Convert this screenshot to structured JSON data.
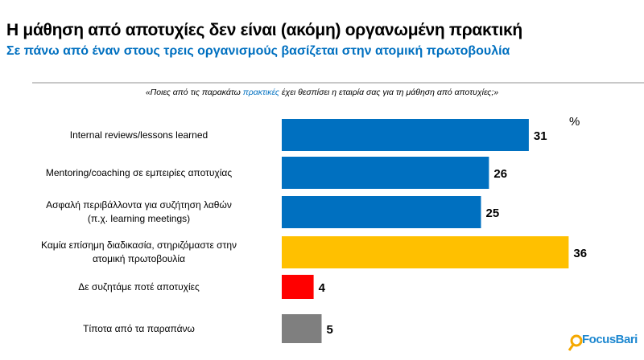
{
  "title": "Η μάθηση από αποτυχίες δεν είναι (ακόμη) οργανωμένη πρακτική",
  "subtitle": "Σε πάνω από έναν στους τρεις οργανισμούς βασίζεται στην ατομική πρωτοβουλία",
  "question": {
    "before": "«Ποιες από τις παρακάτω ",
    "highlight": "πρακτικές",
    "after": " έχει θεσπίσει η εταιρία σας για τη μάθηση από αποτυχίες;»"
  },
  "logo": {
    "text": "FocusBari",
    "color": "#1e88d0",
    "icon": "magnifier-icon"
  },
  "chart_data": {
    "type": "bar",
    "orientation": "horizontal",
    "unit_label": "%",
    "categories": [
      "Internal reviews/lessons learned",
      "Mentoring/coaching σε εμπειρίες αποτυχίας",
      "Ασφαλή περιβάλλοντα για συζήτηση λαθών\n(π.χ. learning meetings)",
      "Καμία επίσημη διαδικασία, στηριζόμαστε στην\nατομική πρωτοβουλία",
      "Δε συζητάμε ποτέ αποτυχίες",
      "Τίποτα από τα παραπάνω"
    ],
    "values": [
      31,
      26,
      25,
      36,
      4,
      5
    ],
    "colors": [
      "#0070c0",
      "#0070c0",
      "#0070c0",
      "#ffc000",
      "#ff0000",
      "#7f7f7f"
    ],
    "grid": false
  }
}
